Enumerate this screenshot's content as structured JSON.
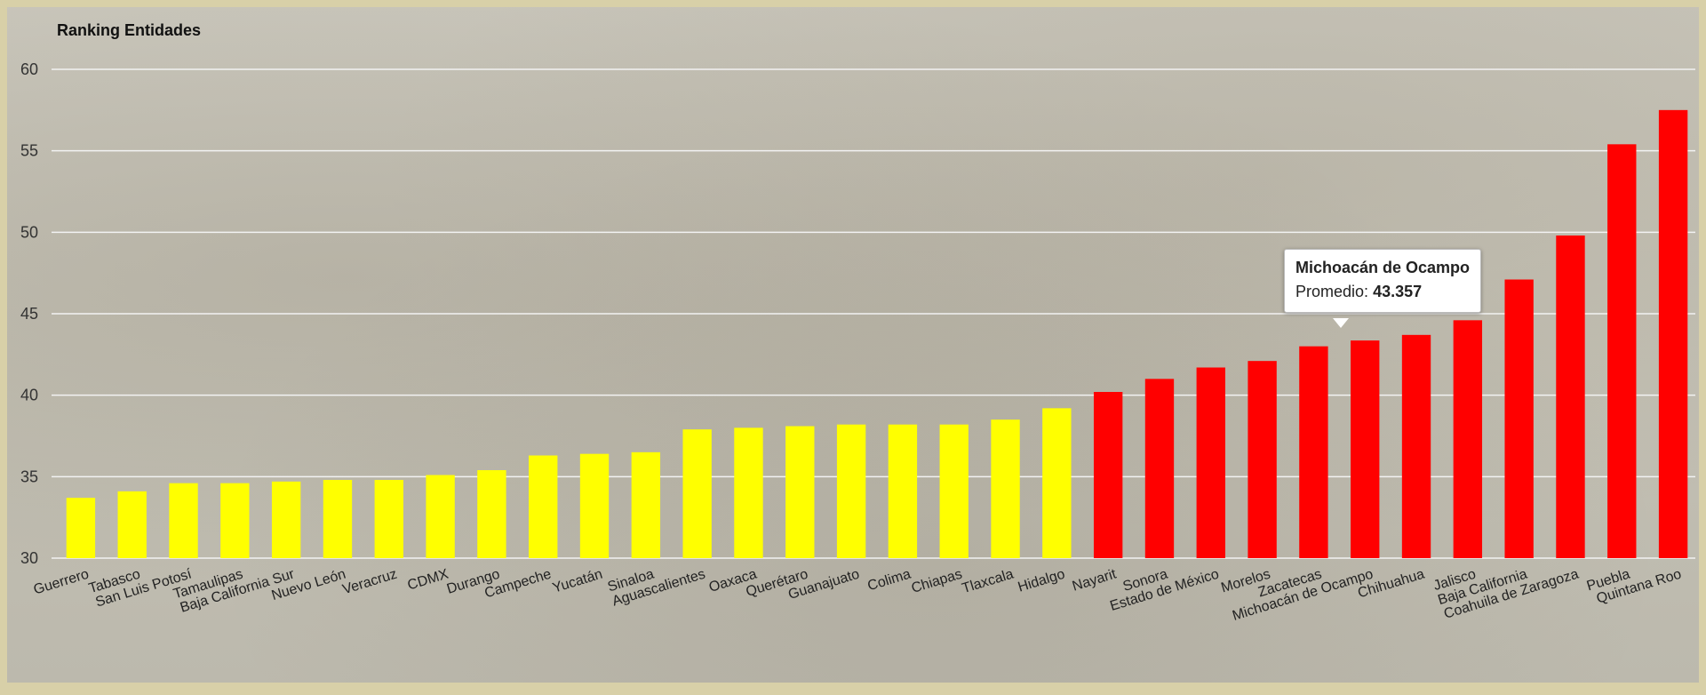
{
  "chart_data": {
    "type": "bar",
    "title": "Ranking Entidades",
    "xlabel": "",
    "ylabel": "",
    "ylim": [
      30,
      60
    ],
    "yticks": [
      30,
      35,
      40,
      45,
      50,
      55,
      60
    ],
    "grid": true,
    "categories": [
      "Guerrero",
      "Tabasco",
      "San Luis Potosí",
      "Tamaulipas",
      "Baja California Sur",
      "Nuevo León",
      "Veracruz",
      "CDMX",
      "Durango",
      "Campeche",
      "Yucatán",
      "Sinaloa",
      "Aguascalientes",
      "Oaxaca",
      "Querétaro",
      "Guanajuato",
      "Colima",
      "Chiapas",
      "Tlaxcala",
      "Hidalgo",
      "Nayarit",
      "Sonora",
      "Estado de México",
      "Morelos",
      "Zacatecas",
      "Michoacán de Ocampo",
      "Chihuahua",
      "Jalisco",
      "Baja California",
      "Coahuila de Zaragoza",
      "Puebla",
      "Quintana Roo"
    ],
    "values": [
      33.7,
      34.1,
      34.6,
      34.6,
      34.7,
      34.8,
      34.8,
      35.1,
      35.4,
      36.3,
      36.4,
      36.5,
      37.9,
      38.0,
      38.1,
      38.2,
      38.2,
      38.2,
      38.5,
      39.2,
      40.2,
      41.0,
      41.7,
      42.1,
      43.0,
      43.357,
      43.7,
      44.6,
      47.1,
      49.8,
      55.4,
      57.5
    ],
    "colors": [
      "#ffff00",
      "#ffff00",
      "#ffff00",
      "#ffff00",
      "#ffff00",
      "#ffff00",
      "#ffff00",
      "#ffff00",
      "#ffff00",
      "#ffff00",
      "#ffff00",
      "#ffff00",
      "#ffff00",
      "#ffff00",
      "#ffff00",
      "#ffff00",
      "#ffff00",
      "#ffff00",
      "#ffff00",
      "#ffff00",
      "#ff0000",
      "#ff0000",
      "#ff0000",
      "#ff0000",
      "#ff0000",
      "#ff0000",
      "#ff0000",
      "#ff0000",
      "#ff0000",
      "#ff0000",
      "#ff0000",
      "#ff0000"
    ],
    "tooltip": {
      "name": "Michoacán de Ocampo",
      "label": "Promedio:",
      "value": "43.357"
    }
  }
}
